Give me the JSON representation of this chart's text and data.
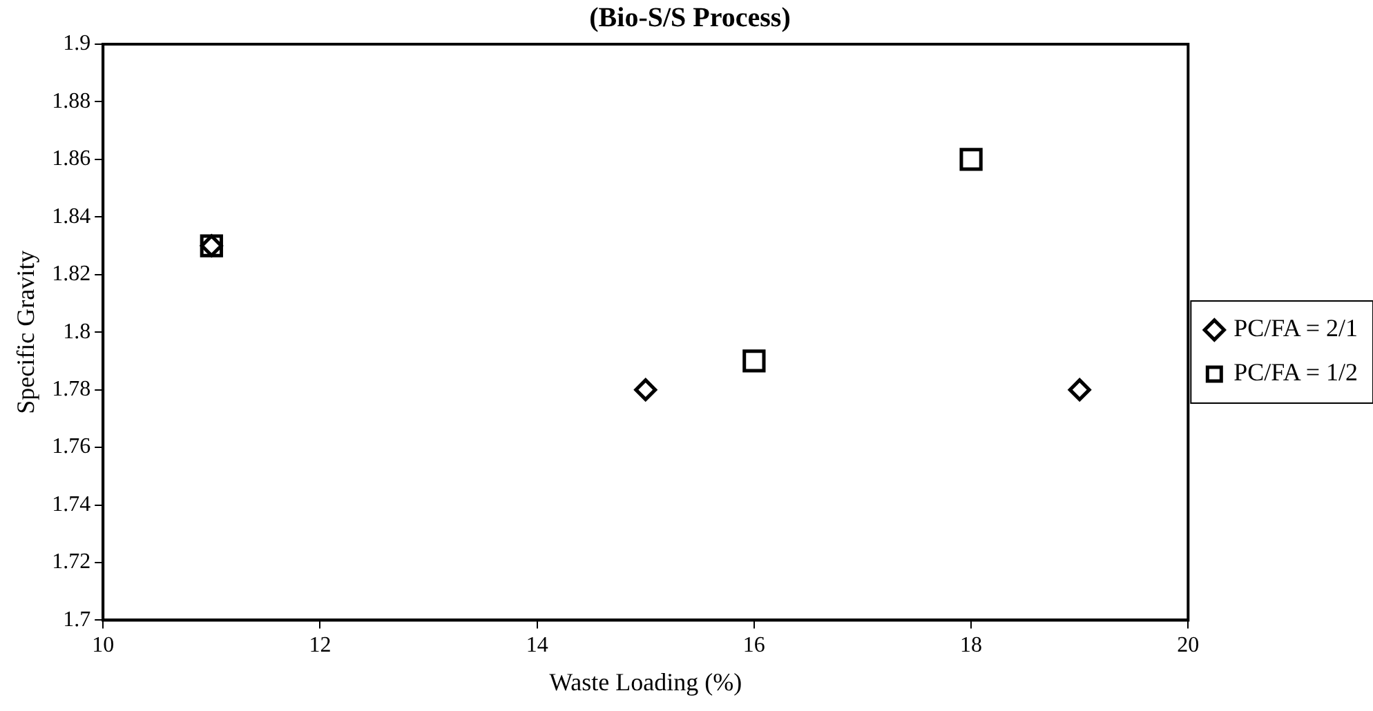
{
  "chart_data": {
    "type": "scatter",
    "title": "(Bio-S/S Process)",
    "xlabel": "Waste Loading (%)",
    "ylabel": "Specific Gravity",
    "series": [
      {
        "name": "PC/FA = 2/1",
        "color": "#000000",
        "marker": "diamond",
        "x": [
          11,
          15,
          19
        ],
        "values": [
          1.83,
          1.78,
          1.78
        ]
      },
      {
        "name": "PC/FA = 1/2",
        "color": "#000000",
        "marker": "square",
        "x": [
          11,
          16,
          18
        ],
        "values": [
          1.83,
          1.79,
          1.86
        ]
      }
    ],
    "xlim": [
      10,
      20
    ],
    "xticks": [
      10,
      12,
      14,
      16,
      18,
      20
    ],
    "ylim": [
      1.7,
      1.9
    ],
    "yticks": [
      1.7,
      1.72,
      1.74,
      1.76,
      1.78,
      1.8,
      1.82,
      1.84,
      1.86,
      1.88,
      1.9
    ],
    "grid": false,
    "legend": "right"
  }
}
